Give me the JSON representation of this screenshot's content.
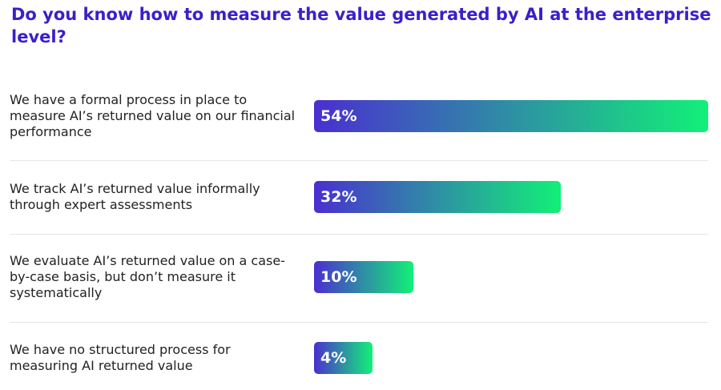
{
  "chart_data": {
    "type": "bar",
    "title": "Do you know how to measure the value generated by AI at the enterprise level?",
    "categories": [
      "We have a formal process in place to measure AI’s returned value on our financial performance",
      "We track AI’s returned value informally through expert assessments",
      "We evaluate AI’s returned value on a case-by-case basis, but don’t measure it systematically",
      "We have no structured process for measuring AI returned value"
    ],
    "values": [
      54,
      32,
      10,
      4
    ],
    "value_labels": [
      "54%",
      "32%",
      "10%",
      "4%"
    ],
    "colors": [
      "#4a2fd0",
      "#12f078"
    ]
  }
}
